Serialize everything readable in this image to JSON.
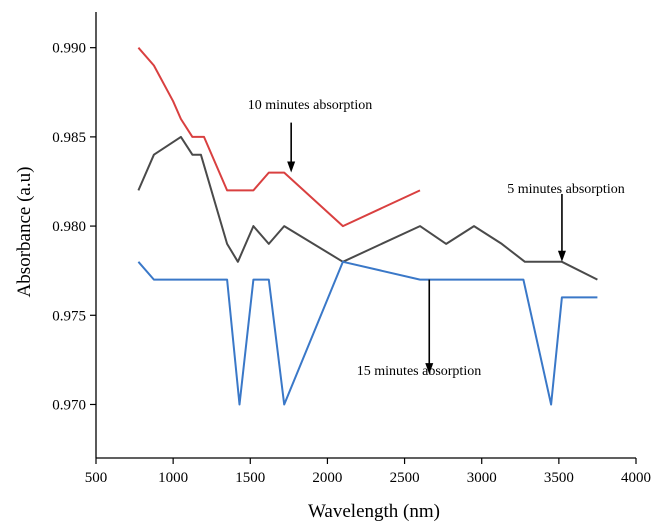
{
  "chart_data": {
    "type": "line",
    "title": "",
    "xlabel": "Wavelength (nm)",
    "ylabel": "Absorbance (a.u)",
    "xlim": [
      500,
      4000
    ],
    "ylim": [
      0.967,
      0.992
    ],
    "xticks": [
      500,
      1000,
      1500,
      2000,
      2500,
      3000,
      3500,
      4000
    ],
    "yticks": [
      0.97,
      0.975,
      0.98,
      0.985,
      0.99
    ],
    "grid": false,
    "legend": "none",
    "series": [
      {
        "color": "#d94040",
        "x": [
          775,
          875,
          1000,
          1050,
          1125,
          1200,
          1350,
          1520,
          1620,
          1720,
          2100,
          2600
        ],
        "y": [
          0.99,
          0.989,
          0.987,
          0.986,
          0.985,
          0.985,
          0.982,
          0.982,
          0.983,
          0.983,
          0.98,
          0.982
        ]
      },
      {
        "color": "#4a4a4a",
        "x": [
          775,
          875,
          1050,
          1125,
          1180,
          1350,
          1420,
          1520,
          1620,
          1720,
          2100,
          2600,
          2770,
          2950,
          3130,
          3280,
          3520,
          3750
        ],
        "y": [
          0.982,
          0.984,
          0.985,
          0.984,
          0.984,
          0.979,
          0.978,
          0.98,
          0.979,
          0.98,
          0.978,
          0.98,
          0.979,
          0.98,
          0.979,
          0.978,
          0.978,
          0.977
        ]
      },
      {
        "color": "#3a78c8",
        "x": [
          775,
          875,
          1000,
          1350,
          1430,
          1520,
          1620,
          1720,
          2100,
          2600,
          3270,
          3450,
          3520,
          3750
        ],
        "y": [
          0.978,
          0.977,
          0.977,
          0.977,
          0.97,
          0.977,
          0.977,
          0.97,
          0.978,
          0.977,
          0.977,
          0.97,
          0.976,
          0.976
        ]
      }
    ],
    "annotations": [
      {
        "text": "10 minutes absorption",
        "point": [
          1765,
          0.983
        ],
        "arrow_from": [
          1765,
          0.9858
        ]
      },
      {
        "text": "5 minutes absorption",
        "point": [
          3520,
          0.978
        ],
        "arrow_from": [
          3520,
          0.9818
        ]
      },
      {
        "text": "15 minutes absorption",
        "point": [
          2660,
          0.9717
        ],
        "arrow_from": [
          2660,
          0.977
        ]
      }
    ]
  }
}
